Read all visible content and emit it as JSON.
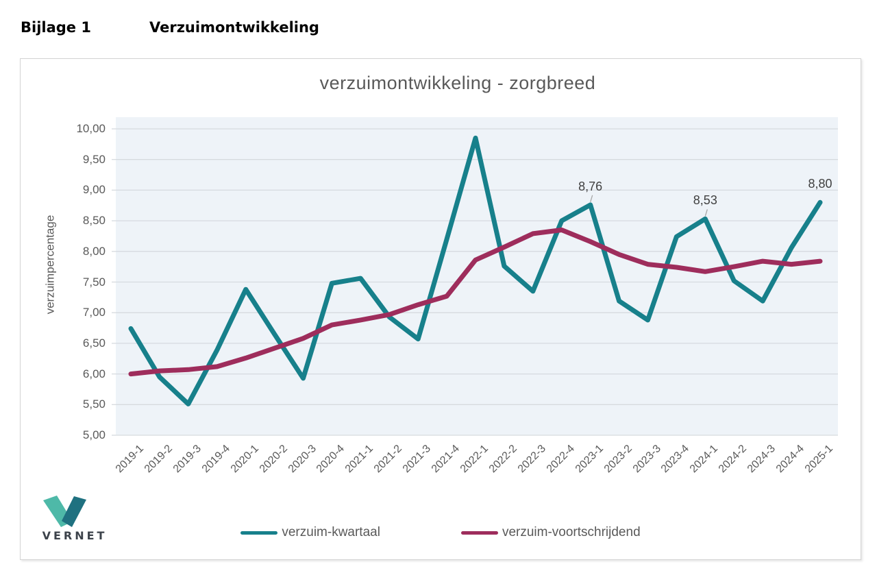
{
  "page": {
    "heading_label": "Bijlage 1",
    "heading_title": "Verzuimontwikkeling"
  },
  "chart_data": {
    "type": "line",
    "title": "verzuimontwikkeling - zorgbreed",
    "xlabel": "",
    "ylabel": "verzuimpercentage",
    "ylim": [
      5.0,
      10.0
    ],
    "ytick_step": 0.5,
    "ytick_labels": [
      "10,00",
      "9,50",
      "9,00",
      "8,50",
      "8,00",
      "7,50",
      "7,00",
      "6,50",
      "6,00",
      "5,50",
      "5,00"
    ],
    "grid": true,
    "legend_position": "bottom",
    "plot_bg_color": "#EEF3F8",
    "gridline_color": "#D6DADF",
    "categories": [
      "2019-1",
      "2019-2",
      "2019-3",
      "2019-4",
      "2020-1",
      "2020-2",
      "2020-3",
      "2020-4",
      "2021-1",
      "2021-2",
      "2021-3",
      "2021-4",
      "2022-1",
      "2022-2",
      "2022-3",
      "2022-4",
      "2023-1",
      "2023-2",
      "2023-3",
      "2023-4",
      "2024-1",
      "2024-2",
      "2024-3",
      "2024-4",
      "2025-1"
    ],
    "series": [
      {
        "name": "verzuim-kwartaal",
        "color": "#17808B",
        "values": [
          6.74,
          5.95,
          5.51,
          6.39,
          7.38,
          6.65,
          5.93,
          7.48,
          7.56,
          6.93,
          6.57,
          8.2,
          9.85,
          7.76,
          7.35,
          8.5,
          8.76,
          7.19,
          6.88,
          8.24,
          8.53,
          7.52,
          7.19,
          8.06,
          8.8
        ]
      },
      {
        "name": "verzuim-voortschrijdend",
        "color": "#9E2D5C",
        "values": [
          6.0,
          6.05,
          6.07,
          6.12,
          6.26,
          6.42,
          6.58,
          6.8,
          6.88,
          6.97,
          7.13,
          7.27,
          7.86,
          8.07,
          8.29,
          8.35,
          8.16,
          7.95,
          7.79,
          7.74,
          7.67,
          7.75,
          7.84,
          7.79,
          7.84
        ]
      }
    ],
    "annotations": [
      {
        "series": "verzuim-kwartaal",
        "category": "2023-1",
        "label": "8,76",
        "has_leader": true
      },
      {
        "series": "verzuim-kwartaal",
        "category": "2024-1",
        "label": "8,53",
        "has_leader": true
      },
      {
        "series": "verzuim-kwartaal",
        "category": "2025-1",
        "label": "8,80",
        "has_leader": false
      }
    ]
  },
  "logo": {
    "text": "VERNET",
    "color_light": "#4EB9A8",
    "color_dark": "#1F7180"
  }
}
